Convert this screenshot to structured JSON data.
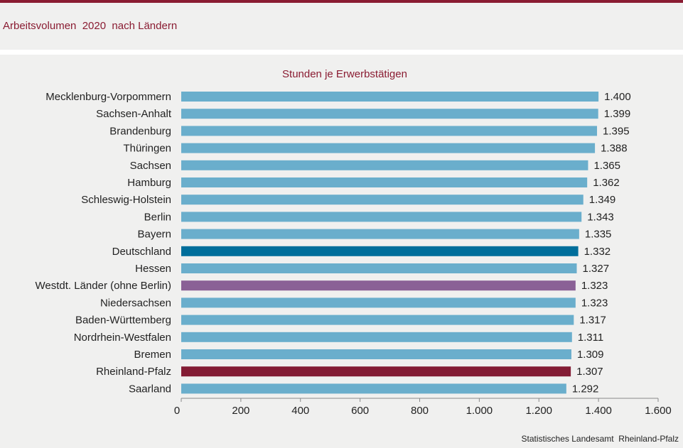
{
  "header": {
    "title": "Arbeitsvolumen  2020  nach Ländern"
  },
  "source": "Statistisches Landesamt  Rheinland-Pfalz",
  "colors": {
    "default": "#6aaecc",
    "deutschland": "#006e9b",
    "westdt": "#8a6196",
    "rlp": "#831c34",
    "accent": "#8a1c32"
  },
  "chart_data": {
    "type": "bar",
    "orientation": "horizontal",
    "subtitle": "Stunden je Erwerbstätigen",
    "categories": [
      "Mecklenburg-Vorpommern",
      "Sachsen-Anhalt",
      "Brandenburg",
      "Thüringen",
      "Sachsen",
      "Hamburg",
      "Schleswig-Holstein",
      "Berlin",
      "Bayern",
      "Deutschland",
      "Hessen",
      "Westdt. Länder (ohne Berlin)",
      "Niedersachsen",
      "Baden-Württemberg",
      "Nordrhein-Westfalen",
      "Bremen",
      "Rheinland-Pfalz",
      "Saarland"
    ],
    "values": [
      1400,
      1399,
      1395,
      1388,
      1365,
      1362,
      1349,
      1343,
      1335,
      1332,
      1327,
      1323,
      1323,
      1317,
      1311,
      1309,
      1307,
      1292
    ],
    "value_labels": [
      "1.400",
      "1.399",
      "1.395",
      "1.388",
      "1.365",
      "1.362",
      "1.349",
      "1.343",
      "1.335",
      "1.332",
      "1.327",
      "1.323",
      "1.323",
      "1.317",
      "1.311",
      "1.309",
      "1.307",
      "1.292"
    ],
    "bar_colors": [
      "default",
      "default",
      "default",
      "default",
      "default",
      "default",
      "default",
      "default",
      "default",
      "deutschland",
      "default",
      "westdt",
      "default",
      "default",
      "default",
      "default",
      "rlp",
      "default"
    ],
    "xlim": [
      0,
      1600
    ],
    "xticks": [
      0,
      200,
      400,
      600,
      800,
      1000,
      1200,
      1400,
      1600
    ],
    "xtick_labels": [
      "0",
      "200",
      "400",
      "600",
      "800",
      "1.000",
      "1.200",
      "1.400",
      "1.600"
    ],
    "grid": false,
    "legend": "none"
  }
}
